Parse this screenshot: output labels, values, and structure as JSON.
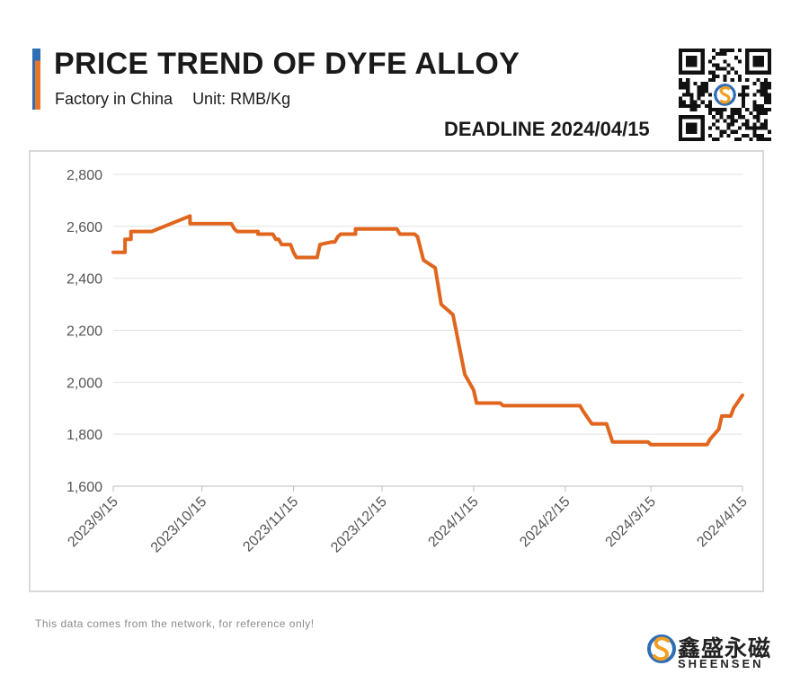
{
  "header": {
    "title": "PRICE TREND OF DYFE ALLOY",
    "subtitle_left": "Factory in China",
    "subtitle_unit": "Unit: RMB/Kg",
    "deadline": "DEADLINE 2024/04/15"
  },
  "footer": {
    "note": "This data comes from the network, for reference only!",
    "brand_cn": "鑫盛永磁",
    "brand_en": "SHEENSEN"
  },
  "colors": {
    "line": "#e0661e",
    "accent_blue": "#2f6db5",
    "accent_orange": "#e8762a",
    "grid": "#e2e2e2"
  },
  "icons": {
    "qr": "qr-code-icon",
    "logo": "sheensen-logo-icon"
  },
  "chart_data": {
    "type": "line",
    "title": "PRICE TREND OF DYFE ALLOY",
    "xlabel": "",
    "ylabel": "",
    "ylim": [
      1600,
      2800
    ],
    "yticks": [
      1600,
      1800,
      2000,
      2200,
      2400,
      2600,
      2800
    ],
    "ytick_labels": [
      "1,600",
      "1,800",
      "2,000",
      "2,200",
      "2,400",
      "2,600",
      "2,800"
    ],
    "xlim": [
      "2023-09-15",
      "2024-04-15"
    ],
    "xticks": [
      "2023-09-15",
      "2023-10-15",
      "2023-11-15",
      "2023-12-15",
      "2024-01-15",
      "2024-02-15",
      "2024-03-15",
      "2024-04-15"
    ],
    "xtick_labels": [
      "2023/9/15",
      "2023/10/15",
      "2023/11/15",
      "2023/12/15",
      "2024/1/15",
      "2024/2/15",
      "2024/3/15",
      "2024/4/15"
    ],
    "grid": "horizontal",
    "series": [
      {
        "points": [
          [
            "2023-09-15",
            2500
          ],
          [
            "2023-09-19",
            2500
          ],
          [
            "2023-09-19",
            2550
          ],
          [
            "2023-09-21",
            2550
          ],
          [
            "2023-09-21",
            2580
          ],
          [
            "2023-09-28",
            2580
          ],
          [
            "2023-10-11",
            2640
          ],
          [
            "2023-10-11",
            2610
          ],
          [
            "2023-10-25",
            2610
          ],
          [
            "2023-10-26",
            2590
          ],
          [
            "2023-10-27",
            2580
          ],
          [
            "2023-11-03",
            2580
          ],
          [
            "2023-11-03",
            2570
          ],
          [
            "2023-11-08",
            2570
          ],
          [
            "2023-11-09",
            2550
          ],
          [
            "2023-11-10",
            2550
          ],
          [
            "2023-11-11",
            2530
          ],
          [
            "2023-11-14",
            2530
          ],
          [
            "2023-11-15",
            2500
          ],
          [
            "2023-11-16",
            2480
          ],
          [
            "2023-11-23",
            2480
          ],
          [
            "2023-11-24",
            2530
          ],
          [
            "2023-11-28",
            2540
          ],
          [
            "2023-11-29",
            2540
          ],
          [
            "2023-11-30",
            2560
          ],
          [
            "2023-12-01",
            2570
          ],
          [
            "2023-12-06",
            2570
          ],
          [
            "2023-12-06",
            2590
          ],
          [
            "2023-12-20",
            2590
          ],
          [
            "2023-12-21",
            2570
          ],
          [
            "2023-12-26",
            2570
          ],
          [
            "2023-12-27",
            2560
          ],
          [
            "2023-12-29",
            2470
          ],
          [
            "2024-01-02",
            2440
          ],
          [
            "2024-01-04",
            2300
          ],
          [
            "2024-01-08",
            2260
          ],
          [
            "2024-01-12",
            2030
          ],
          [
            "2024-01-15",
            1970
          ],
          [
            "2024-01-16",
            1920
          ],
          [
            "2024-01-24",
            1920
          ],
          [
            "2024-01-25",
            1910
          ],
          [
            "2024-02-20",
            1910
          ],
          [
            "2024-02-21",
            1890
          ],
          [
            "2024-02-24",
            1840
          ],
          [
            "2024-02-29",
            1840
          ],
          [
            "2024-03-02",
            1770
          ],
          [
            "2024-03-14",
            1770
          ],
          [
            "2024-03-15",
            1760
          ],
          [
            "2024-04-03",
            1760
          ],
          [
            "2024-04-04",
            1780
          ],
          [
            "2024-04-07",
            1820
          ],
          [
            "2024-04-08",
            1870
          ],
          [
            "2024-04-11",
            1870
          ],
          [
            "2024-04-12",
            1900
          ],
          [
            "2024-04-15",
            1950
          ]
        ]
      }
    ]
  }
}
